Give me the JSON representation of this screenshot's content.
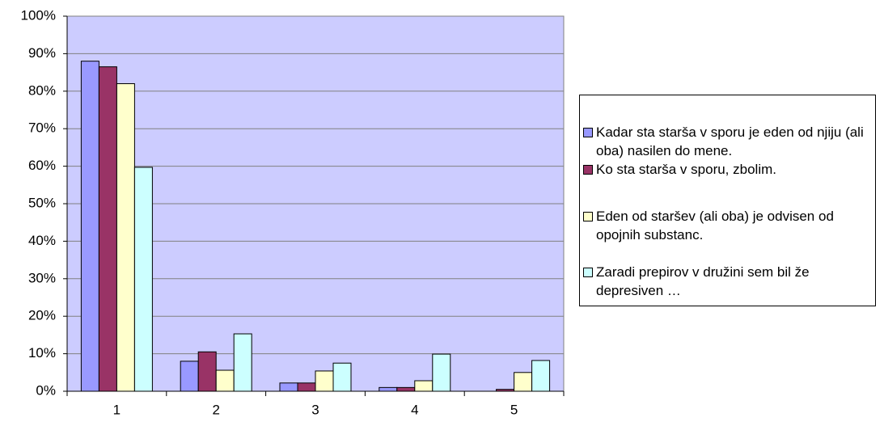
{
  "chart_data": {
    "type": "bar",
    "categories": [
      "1",
      "2",
      "3",
      "4",
      "5"
    ],
    "series": [
      {
        "name": "Kadar sta starša v sporu je eden od njiju (ali oba) nasilen do mene.",
        "color": "#9999ff",
        "values": [
          88,
          8,
          2.2,
          1,
          0
        ]
      },
      {
        "name": "Ko sta starša v sporu, zbolim.",
        "color": "#993366",
        "values": [
          86.5,
          10.5,
          2.2,
          1,
          0.5
        ]
      },
      {
        "name": "Eden od staršev (ali oba) je odvisen od opojnih substanc.",
        "color": "#ffffcc",
        "values": [
          82,
          5.6,
          5.4,
          2.8,
          5
        ]
      },
      {
        "name": "Zaradi prepirov v družini sem bil že depresiven …",
        "color": "#ccffff",
        "values": [
          59.7,
          15.3,
          7.5,
          9.9,
          8.2
        ]
      }
    ],
    "ylim": [
      0,
      100
    ],
    "yticks": [
      {
        "value": 0,
        "label": "0%"
      },
      {
        "value": 10,
        "label": "10%"
      },
      {
        "value": 20,
        "label": "20%"
      },
      {
        "value": 30,
        "label": "30%"
      },
      {
        "value": 40,
        "label": "40%"
      },
      {
        "value": 50,
        "label": "50%"
      },
      {
        "value": 60,
        "label": "60%"
      },
      {
        "value": 70,
        "label": "70%"
      },
      {
        "value": 80,
        "label": "80%"
      },
      {
        "value": 90,
        "label": "90%"
      },
      {
        "value": 100,
        "label": "100%"
      }
    ],
    "grid": true,
    "plot_background": "#ccccff",
    "legend": "right"
  }
}
